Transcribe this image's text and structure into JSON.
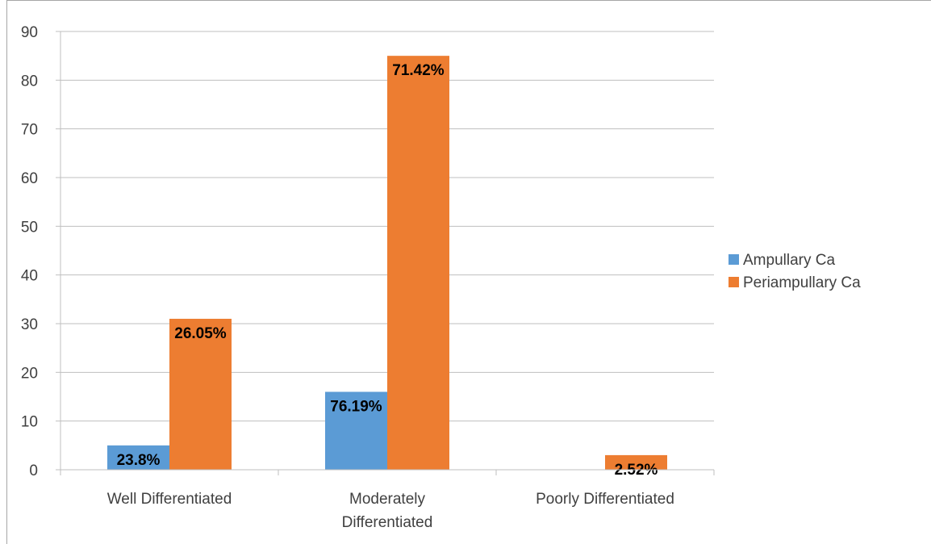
{
  "chart_data": {
    "type": "bar",
    "categories": [
      [
        "Well Differentiated"
      ],
      [
        "Moderately",
        "Differentiated"
      ],
      [
        "Poorly Differentiated"
      ]
    ],
    "series": [
      {
        "name": "Ampullary Ca",
        "color": "#5b9bd5",
        "values": [
          5,
          16,
          0
        ],
        "labels": [
          "23.8%",
          "76.19%",
          ""
        ]
      },
      {
        "name": "Periampullary Ca",
        "color": "#ed7d31",
        "values": [
          31,
          85,
          3
        ],
        "labels": [
          "26.05%",
          "71.42%",
          "2.52%"
        ]
      }
    ],
    "ylim": [
      0,
      90
    ],
    "yticks": [
      0,
      10,
      20,
      30,
      40,
      50,
      60,
      70,
      80,
      90
    ],
    "grid": true,
    "legend_position": "right",
    "gridline_color": "#bfbfbf"
  }
}
